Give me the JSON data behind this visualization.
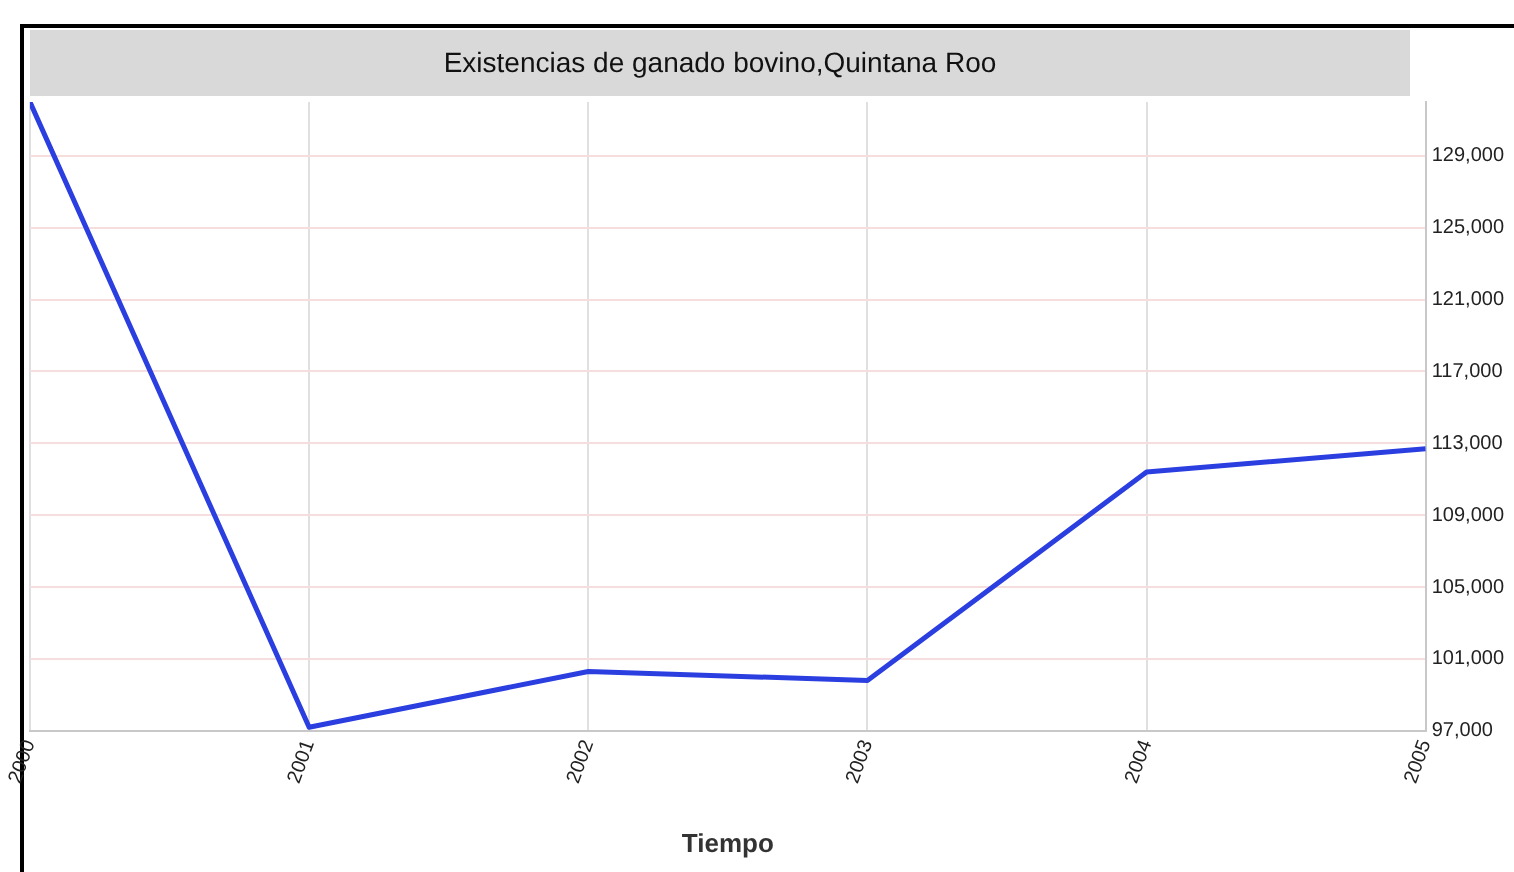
{
  "chart_data": {
    "type": "line",
    "title": "Existencias de ganado bovino,Quintana Roo",
    "xlabel": "Tiempo",
    "x": [
      2000,
      2001,
      2002,
      2003,
      2004,
      2005
    ],
    "series": [
      {
        "color": "#2b3fe0",
        "values": [
          132000,
          97200,
          100300,
          99800,
          111400,
          112700
        ]
      }
    ],
    "xlim": [
      2000,
      2005
    ],
    "xticks": [
      2000,
      2001,
      2002,
      2003,
      2004,
      2005
    ],
    "ylim": [
      97000,
      132000
    ],
    "yticks": [
      {
        "value": 97000,
        "label": "97,000"
      },
      {
        "value": 101000,
        "label": "101,000"
      },
      {
        "value": 105000,
        "label": "105,000"
      },
      {
        "value": 109000,
        "label": "109,000"
      },
      {
        "value": 113000,
        "label": "113,000"
      },
      {
        "value": 117000,
        "label": "117,000"
      },
      {
        "value": 121000,
        "label": "121,000"
      },
      {
        "value": 125000,
        "label": "125,000"
      },
      {
        "value": 129000,
        "label": "129,000"
      }
    ],
    "grid": true,
    "legend": false,
    "marker": "none",
    "line_style": "solid"
  }
}
